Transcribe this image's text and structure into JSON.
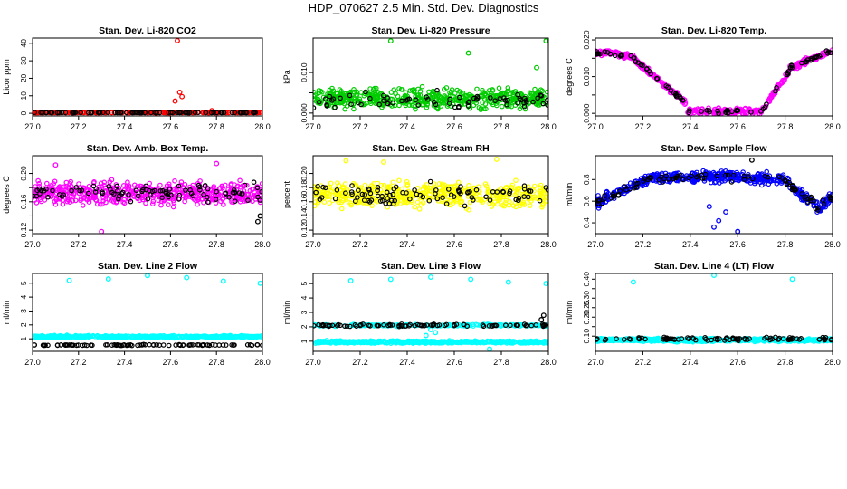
{
  "page_title": "HDP_070627  2.5 Min. Std. Dev. Diagnostics",
  "colors": {
    "red": "#ff0000",
    "green": "#00cc00",
    "magenta": "#ff00ff",
    "yellow": "#ffff00",
    "blue": "#0000ff",
    "cyan": "#00ffff",
    "black": "#000000"
  },
  "chart_data": [
    {
      "type": "scatter",
      "title": "Stan. Dev. Li-820 CO2",
      "xlabel": "",
      "ylabel": "Licor ppm",
      "xlim": [
        27.0,
        28.0
      ],
      "ylim": [
        -1.5,
        43
      ],
      "xticks": [
        27.0,
        27.2,
        27.4,
        27.6,
        27.8,
        28.0
      ],
      "xtick_labels": [
        "27.0",
        "27.2",
        "27.4",
        "27.6",
        "27.8",
        "28.0"
      ],
      "yticks": [
        0,
        10,
        20,
        30,
        40
      ],
      "ytick_labels": [
        "0",
        "10",
        "20",
        "30",
        "40"
      ],
      "series": [
        {
          "name": "main",
          "color": "red",
          "base": 0.4,
          "spread": 0.15,
          "density": 240,
          "outliers": [
            [
              27.63,
              41.5
            ],
            [
              27.64,
              12.0
            ],
            [
              27.65,
              9.5
            ],
            [
              27.62,
              7.0
            ],
            [
              27.78,
              1.5
            ]
          ]
        },
        {
          "name": "reference",
          "color": "black",
          "base": 0.4,
          "spread": 0.1,
          "density": 80,
          "outliers": []
        }
      ]
    },
    {
      "type": "scatter",
      "title": "Stan. Dev. Li-820 Pressure",
      "xlabel": "",
      "ylabel": "kPa",
      "xlim": [
        27.0,
        28.0
      ],
      "ylim": [
        -0.0007,
        0.0185
      ],
      "xticks": [
        27.0,
        27.2,
        27.4,
        27.6,
        27.8,
        28.0
      ],
      "xtick_labels": [
        "27.0",
        "27.2",
        "27.4",
        "27.6",
        "27.8",
        "28.0"
      ],
      "yticks": [
        0.0,
        0.005,
        0.01
      ],
      "ytick_labels": [
        "0.000",
        "",
        "0.010"
      ],
      "series": [
        {
          "name": "main",
          "color": "green",
          "base": 0.0035,
          "spread": 0.0035,
          "density": 520,
          "outliers": [
            [
              27.33,
              0.0178
            ],
            [
              27.66,
              0.0148
            ],
            [
              27.99,
              0.0178
            ],
            [
              27.95,
              0.0112
            ]
          ]
        },
        {
          "name": "reference",
          "color": "black",
          "base": 0.003,
          "spread": 0.003,
          "density": 70,
          "outliers": []
        }
      ]
    },
    {
      "type": "scatter",
      "title": "Stan. Dev. Li-820 Temp.",
      "xlabel": "",
      "ylabel": "degrees C",
      "xlim": [
        27.0,
        28.0
      ],
      "ylim": [
        -0.0007,
        0.0205
      ],
      "xticks": [
        27.0,
        27.2,
        27.4,
        27.6,
        27.8,
        28.0
      ],
      "xtick_labels": [
        "27.0",
        "27.2",
        "27.4",
        "27.6",
        "27.8",
        "28.0"
      ],
      "yticks": [
        0.0,
        0.005,
        0.01,
        0.015,
        0.02
      ],
      "ytick_labels": [
        "0.000",
        "",
        "0.010",
        "",
        "0.020"
      ],
      "series": [
        {
          "name": "main",
          "color": "magenta",
          "shape": "temp",
          "spread": 0.0012,
          "density": 460,
          "outliers": []
        },
        {
          "name": "reference",
          "color": "black",
          "shape": "temp",
          "spread": 0.0008,
          "density": 90,
          "outliers": []
        }
      ]
    },
    {
      "type": "scatter",
      "title": "Stan. Dev. Amb. Box Temp.",
      "xlabel": "",
      "ylabel": "degrees C",
      "xlim": [
        27.0,
        28.0
      ],
      "ylim": [
        0.115,
        0.225
      ],
      "xticks": [
        27.0,
        27.2,
        27.4,
        27.6,
        27.8,
        28.0
      ],
      "xtick_labels": [
        "27.0",
        "27.2",
        "27.4",
        "27.6",
        "27.8",
        "28.0"
      ],
      "yticks": [
        0.12,
        0.14,
        0.16,
        0.18,
        0.2
      ],
      "ytick_labels": [
        "0.12",
        "",
        "0.16",
        "",
        "0.20"
      ],
      "series": [
        {
          "name": "main",
          "color": "magenta",
          "base": 0.172,
          "spread": 0.022,
          "density": 520,
          "outliers": [
            [
              27.3,
              0.118
            ],
            [
              27.1,
              0.212
            ],
            [
              27.8,
              0.214
            ]
          ]
        },
        {
          "name": "reference",
          "color": "black",
          "base": 0.172,
          "spread": 0.02,
          "density": 90,
          "outliers": [
            [
              27.99,
              0.14
            ],
            [
              27.98,
              0.132
            ]
          ]
        }
      ]
    },
    {
      "type": "scatter",
      "title": "Stan. Dev. Gas Stream RH",
      "xlabel": "",
      "ylabel": "percent",
      "xlim": [
        27.0,
        28.0
      ],
      "ylim": [
        0.115,
        0.225
      ],
      "xticks": [
        27.0,
        27.2,
        27.4,
        27.6,
        27.8,
        28.0
      ],
      "xtick_labels": [
        "27.0",
        "27.2",
        "27.4",
        "27.6",
        "27.8",
        "28.0"
      ],
      "yticks": [
        0.12,
        0.14,
        0.16,
        0.18,
        0.2
      ],
      "ytick_labels": [
        "0.12",
        "0.14",
        "0.16",
        "0.18",
        "0.20"
      ],
      "series": [
        {
          "name": "main",
          "color": "yellow",
          "base": 0.17,
          "spread": 0.025,
          "density": 520,
          "outliers": [
            [
              27.14,
              0.218
            ],
            [
              27.3,
              0.216
            ],
            [
              27.78,
              0.22
            ]
          ]
        },
        {
          "name": "reference",
          "color": "black",
          "base": 0.17,
          "spread": 0.022,
          "density": 90,
          "outliers": []
        }
      ]
    },
    {
      "type": "scatter",
      "title": "Stan. Dev. Sample Flow",
      "xlabel": "",
      "ylabel": "ml/min",
      "xlim": [
        27.0,
        28.0
      ],
      "ylim": [
        0.3,
        1.02
      ],
      "xticks": [
        27.0,
        27.2,
        27.4,
        27.6,
        27.8,
        28.0
      ],
      "xtick_labels": [
        "27.0",
        "27.2",
        "27.4",
        "27.6",
        "27.8",
        "28.0"
      ],
      "yticks": [
        0.4,
        0.6,
        0.8
      ],
      "ytick_labels": [
        "0.4",
        "0.6",
        "0.8"
      ],
      "series": [
        {
          "name": "main",
          "color": "blue",
          "shape": "flow",
          "spread": 0.07,
          "density": 520,
          "outliers": [
            [
              27.5,
              0.36
            ],
            [
              27.52,
              0.42
            ],
            [
              27.55,
              0.5
            ],
            [
              27.48,
              0.55
            ],
            [
              27.6,
              0.32
            ]
          ]
        },
        {
          "name": "reference",
          "color": "black",
          "shape": "flow",
          "spread": 0.05,
          "density": 90,
          "outliers": [
            [
              27.66,
              0.98
            ]
          ]
        }
      ]
    },
    {
      "type": "scatter",
      "title": "Stan. Dev. Line 2 Flow",
      "xlabel": "",
      "ylabel": "ml/min",
      "xlim": [
        27.0,
        28.0
      ],
      "ylim": [
        0.1,
        5.7
      ],
      "xticks": [
        27.0,
        27.2,
        27.4,
        27.6,
        27.8,
        28.0
      ],
      "xtick_labels": [
        "27.0",
        "27.2",
        "27.4",
        "27.6",
        "27.8",
        "28.0"
      ],
      "yticks": [
        1,
        2,
        3,
        4,
        5
      ],
      "ytick_labels": [
        "1",
        "2",
        "3",
        "4",
        "5"
      ],
      "series": [
        {
          "name": "main",
          "color": "cyan",
          "base": 1.15,
          "spread": 0.12,
          "density": 520,
          "outliers": [
            [
              27.16,
              5.2
            ],
            [
              27.33,
              5.3
            ],
            [
              27.5,
              5.55
            ],
            [
              27.67,
              5.4
            ],
            [
              27.83,
              5.15
            ],
            [
              27.99,
              5.0
            ]
          ]
        },
        {
          "name": "reference",
          "color": "black",
          "base": 0.55,
          "spread": 0.05,
          "density": 90,
          "outliers": []
        }
      ]
    },
    {
      "type": "scatter",
      "title": "Stan. Dev. Line 3 Flow",
      "xlabel": "",
      "ylabel": "ml/min",
      "xlim": [
        27.0,
        28.0
      ],
      "ylim": [
        0.3,
        5.7
      ],
      "xticks": [
        27.0,
        27.2,
        27.4,
        27.6,
        27.8,
        28.0
      ],
      "xtick_labels": [
        "27.0",
        "27.2",
        "27.4",
        "27.6",
        "27.8",
        "28.0"
      ],
      "yticks": [
        1,
        2,
        3,
        4,
        5
      ],
      "ytick_labels": [
        "1",
        "2",
        "3",
        "4",
        "5"
      ],
      "series": [
        {
          "name": "main",
          "color": "cyan",
          "base": 0.95,
          "spread": 0.12,
          "density": 480,
          "outliers": [
            [
              27.16,
              5.2
            ],
            [
              27.33,
              5.3
            ],
            [
              27.5,
              5.45
            ],
            [
              27.67,
              5.3
            ],
            [
              27.83,
              5.1
            ],
            [
              27.99,
              5.0
            ],
            [
              27.5,
              1.8
            ],
            [
              27.52,
              1.6
            ],
            [
              27.48,
              1.4
            ],
            [
              27.75,
              0.45
            ]
          ]
        },
        {
          "name": "upper",
          "color": "cyan",
          "base": 2.1,
          "spread": 0.1,
          "density": 180,
          "outliers": []
        },
        {
          "name": "reference",
          "color": "black",
          "base": 2.1,
          "spread": 0.12,
          "density": 90,
          "outliers": [
            [
              27.98,
              2.8
            ],
            [
              27.97,
              2.5
            ]
          ]
        }
      ]
    },
    {
      "type": "scatter",
      "title": "Stan. Dev. Line 4 (LT) Flow",
      "xlabel": "",
      "ylabel": "ml/min",
      "xlim": [
        27.0,
        28.0
      ],
      "ylim": [
        0.02,
        0.43
      ],
      "xticks": [
        27.0,
        27.2,
        27.4,
        27.6,
        27.8,
        28.0
      ],
      "xtick_labels": [
        "27.0",
        "27.2",
        "27.4",
        "27.6",
        "27.8",
        "28.0"
      ],
      "yticks": [
        0.1,
        0.15,
        0.2,
        0.25,
        0.3,
        0.35,
        0.4
      ],
      "ytick_labels": [
        "0.10",
        "",
        "0.20",
        "0.25",
        "0.30",
        "",
        "0.40"
      ],
      "series": [
        {
          "name": "main",
          "color": "cyan",
          "base": 0.08,
          "spread": 0.012,
          "density": 520,
          "outliers": [
            [
              27.16,
              0.385
            ],
            [
              27.5,
              0.42
            ],
            [
              27.83,
              0.4
            ]
          ]
        },
        {
          "name": "reference",
          "color": "black",
          "base": 0.085,
          "spread": 0.012,
          "density": 90,
          "outliers": []
        }
      ]
    }
  ]
}
